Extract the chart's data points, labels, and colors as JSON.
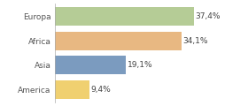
{
  "categories": [
    "Europa",
    "Africa",
    "Asia",
    "America"
  ],
  "values": [
    37.4,
    34.1,
    19.1,
    9.4
  ],
  "labels": [
    "37,4%",
    "34,1%",
    "19,1%",
    "9,4%"
  ],
  "bar_colors": [
    "#b5cc96",
    "#e8b882",
    "#7b9bbf",
    "#f0d070"
  ],
  "background_color": "#ffffff",
  "xlim": [
    0,
    44
  ],
  "bar_height": 0.78,
  "label_fontsize": 6.5,
  "category_fontsize": 6.5,
  "figsize": [
    2.8,
    1.2
  ],
  "dpi": 100
}
